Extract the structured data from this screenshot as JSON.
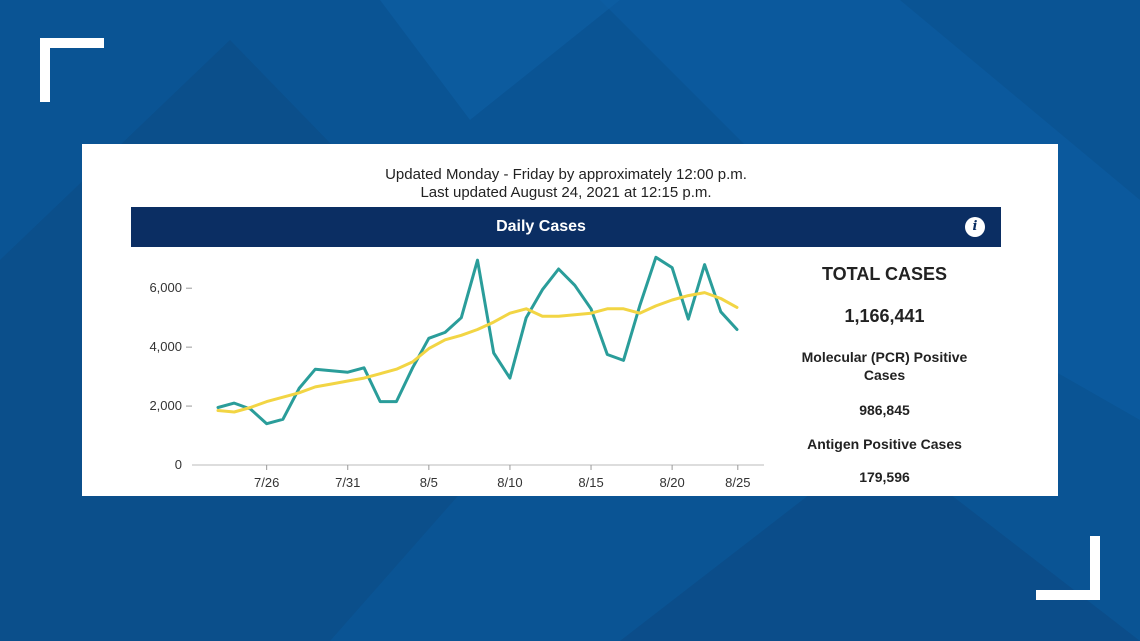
{
  "update_schedule": "Updated Monday - Friday by approximately 12:00 p.m.",
  "last_updated": "Last updated August 24, 2021 at 12:15 p.m.",
  "header": {
    "title": "Daily Cases",
    "info_icon": "info-icon"
  },
  "stats": {
    "total_label": "TOTAL CASES",
    "total_value": "1,166,441",
    "pcr_label": "Molecular (PCR) Positive Cases",
    "pcr_value": "986,845",
    "antigen_label": "Antigen Positive Cases",
    "antigen_value": "179,596"
  },
  "colors": {
    "daily": "#2a9d9a",
    "average": "#f2d544",
    "header": "#0b2e63",
    "background": "#0a5494"
  },
  "chart_data": {
    "type": "line",
    "x": [
      "7/23",
      "7/24",
      "7/25",
      "7/26",
      "7/27",
      "7/28",
      "7/29",
      "7/30",
      "7/31",
      "8/1",
      "8/2",
      "8/3",
      "8/4",
      "8/5",
      "8/6",
      "8/7",
      "8/8",
      "8/9",
      "8/10",
      "8/11",
      "8/12",
      "8/13",
      "8/14",
      "8/15",
      "8/16",
      "8/17",
      "8/18",
      "8/19",
      "8/20",
      "8/21",
      "8/22",
      "8/23",
      "8/24"
    ],
    "series": [
      {
        "values": [
          1950,
          2100,
          1900,
          1400,
          1550,
          2600,
          3250,
          3200,
          3150,
          3300,
          2150,
          2150,
          3300,
          4300,
          4500,
          5000,
          6950,
          3800,
          2950,
          5000,
          5950,
          6650,
          6100,
          5300,
          3750,
          3550,
          5400,
          7050,
          6700,
          4950,
          6800,
          5200,
          4600
        ]
      },
      {
        "values": [
          1850,
          1800,
          1950,
          2150,
          2300,
          2450,
          2650,
          2750,
          2850,
          2950,
          3100,
          3250,
          3500,
          3950,
          4250,
          4400,
          4600,
          4850,
          5150,
          5300,
          5050,
          5050,
          5100,
          5150,
          5300,
          5300,
          5150,
          5400,
          5600,
          5750,
          5850,
          5650,
          5350
        ]
      }
    ],
    "xticks": [
      "7/26",
      "7/31",
      "8/5",
      "8/10",
      "8/15",
      "8/20",
      "8/25"
    ],
    "yticks": [
      "0",
      "2,000",
      "4,000",
      "6,000"
    ],
    "ylim": [
      0,
      7500
    ],
    "grid": false,
    "legend": "none"
  }
}
